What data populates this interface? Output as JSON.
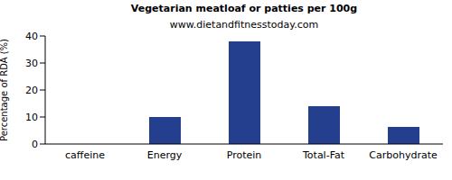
{
  "chart_data": {
    "type": "bar",
    "title": "Vegetarian meatloaf or patties per 100g",
    "subtitle": "www.dietandfitnesstoday.com",
    "y_label": "Percentage of RDA (%)",
    "categories": [
      "caffeine",
      "Energy",
      "Protein",
      "Total-Fat",
      "Carbohydrate"
    ],
    "values": [
      0,
      10,
      38,
      14,
      6.3
    ],
    "color": "#253f8f",
    "ylim": [
      0,
      40
    ],
    "yticks": [
      0,
      10,
      20,
      30,
      40
    ],
    "grid": false
  }
}
